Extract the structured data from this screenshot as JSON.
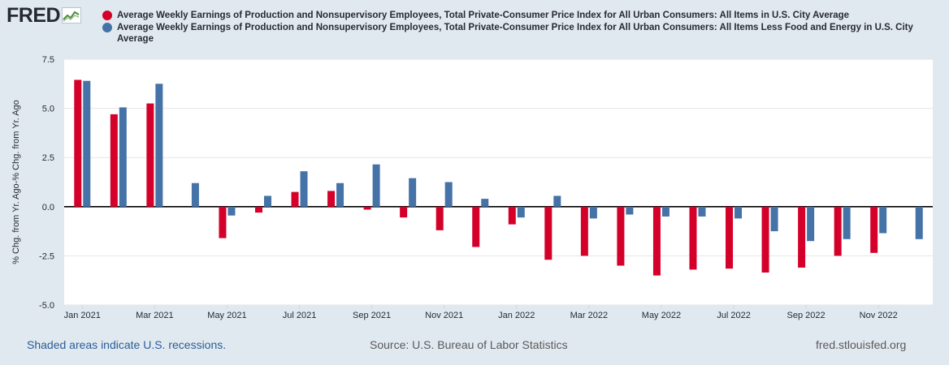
{
  "logo": {
    "text": "FRED",
    "icon": "line-chart-icon"
  },
  "legend": [
    {
      "label": "Average Weekly Earnings of Production and Nonsupervisory Employees, Total Private-Consumer Price Index for All Urban Consumers: All Items in U.S. City Average",
      "color": "#d4002a"
    },
    {
      "label": "Average Weekly Earnings of Production and Nonsupervisory Employees, Total Private-Consumer Price Index for All Urban Consumers: All Items Less Food and Energy in U.S. City Average",
      "color": "#4572a7"
    }
  ],
  "chart_data": {
    "type": "bar",
    "title": "",
    "xlabel": "",
    "ylabel": "% Chg. from Yr. Ago-% Chg. from Yr. Ago",
    "ylim": [
      -5.0,
      7.5
    ],
    "yticks": [
      "7.5",
      "5.0",
      "2.5",
      "0.0",
      "-2.5",
      "-5.0"
    ],
    "ytick_values": [
      7.5,
      5.0,
      2.5,
      0.0,
      -2.5,
      -5.0
    ],
    "categories": [
      "Jan 2021",
      "Feb 2021",
      "Mar 2021",
      "Apr 2021",
      "May 2021",
      "Jun 2021",
      "Jul 2021",
      "Aug 2021",
      "Sep 2021",
      "Oct 2021",
      "Nov 2021",
      "Dec 2021",
      "Jan 2022",
      "Feb 2022",
      "Mar 2022",
      "Apr 2022",
      "May 2022",
      "Jun 2022",
      "Jul 2022",
      "Aug 2022",
      "Sep 2022",
      "Oct 2022",
      "Nov 2022",
      "Dec 2022"
    ],
    "xtick_labels": [
      "Jan 2021",
      "Mar 2021",
      "May 2021",
      "Jul 2021",
      "Sep 2021",
      "Nov 2021",
      "Jan 2022",
      "Mar 2022",
      "May 2022",
      "Jul 2022",
      "Sep 2022",
      "Nov 2022"
    ],
    "series": [
      {
        "name": "All Items",
        "color": "#d4002a",
        "values": [
          6.45,
          4.7,
          5.25,
          0.0,
          -1.6,
          -0.3,
          0.75,
          0.8,
          -0.15,
          -0.55,
          -1.2,
          -2.05,
          -0.9,
          -2.7,
          -2.5,
          -3.0,
          -3.5,
          -3.2,
          -3.15,
          -3.35,
          -3.1,
          -2.5,
          -2.35,
          null
        ]
      },
      {
        "name": "All Items Less Food and Energy",
        "color": "#4572a7",
        "values": [
          6.4,
          5.05,
          6.25,
          1.2,
          -0.45,
          0.55,
          1.8,
          1.2,
          2.15,
          1.45,
          1.25,
          0.4,
          -0.55,
          0.55,
          -0.6,
          -0.4,
          -0.5,
          -0.5,
          -0.6,
          -1.25,
          -1.75,
          -1.65,
          -1.35,
          -1.65
        ]
      }
    ],
    "grid": true,
    "legend_position": "top"
  },
  "footer": {
    "recessions_note": "Shaded areas indicate U.S. recessions.",
    "source": "Source: U.S. Bureau of Labor Statistics",
    "site": "fred.stlouisfed.org"
  }
}
